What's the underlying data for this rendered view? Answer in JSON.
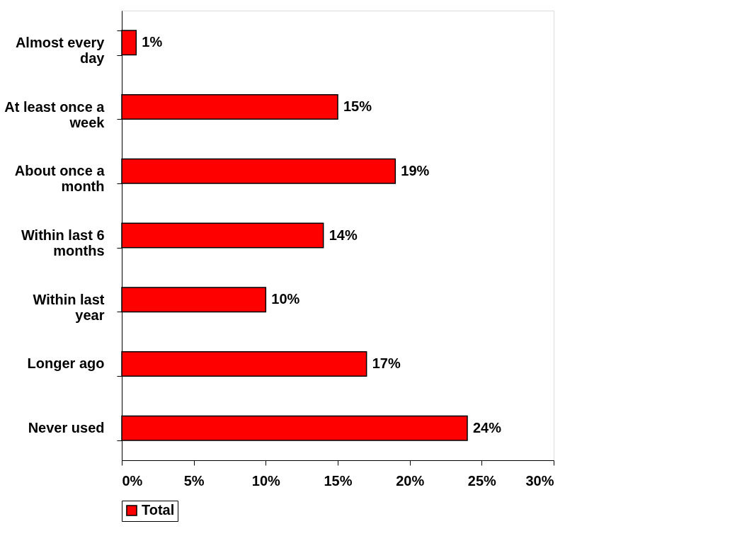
{
  "chart_data": {
    "type": "bar",
    "orientation": "horizontal",
    "categories": [
      "Almost every day",
      "At least once a week",
      "About once a month",
      "Within last 6 months",
      "Within last year",
      "Longer ago",
      "Never used"
    ],
    "series": [
      {
        "name": "Total",
        "color": "#ff0000",
        "values": [
          1,
          15,
          19,
          14,
          10,
          17,
          24
        ],
        "value_labels": [
          "1%",
          "15%",
          "19%",
          "14%",
          "10%",
          "17%",
          "24%"
        ]
      }
    ],
    "xlim": [
      0,
      30
    ],
    "xticks": [
      {
        "value": 0,
        "label": "0%"
      },
      {
        "value": 5,
        "label": "5%"
      },
      {
        "value": 10,
        "label": "10%"
      },
      {
        "value": 15,
        "label": "15%"
      },
      {
        "value": 20,
        "label": "20%"
      },
      {
        "value": 25,
        "label": "25%"
      },
      {
        "value": 30,
        "label": "30%"
      }
    ],
    "legend": "bottom",
    "grid": false
  }
}
